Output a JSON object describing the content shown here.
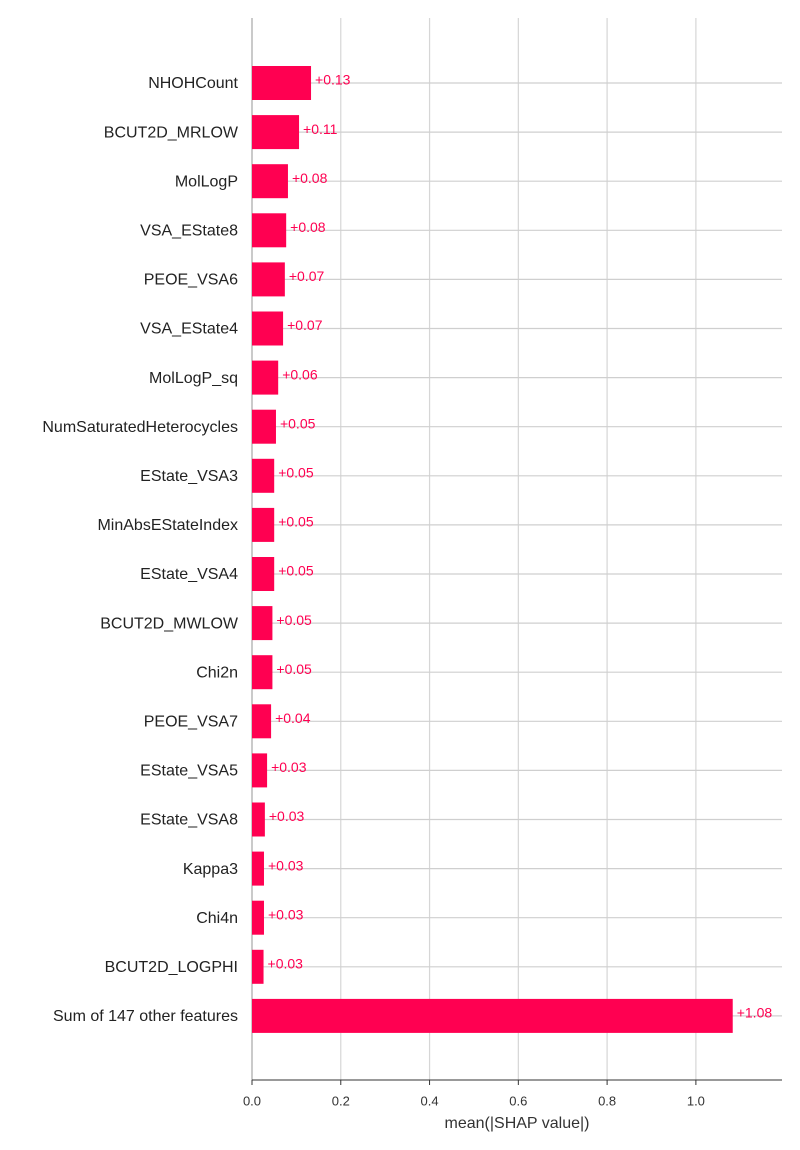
{
  "chart_data": {
    "type": "barh",
    "xlabel": "mean(|SHAP value|)",
    "categories": [
      "NHOHCount",
      "BCUT2D_MRLOW",
      "MolLogP",
      "VSA_EState8",
      "PEOE_VSA6",
      "VSA_EState4",
      "MolLogP_sq",
      "NumSaturatedHeterocycles",
      "EState_VSA3",
      "MinAbsEStateIndex",
      "EState_VSA4",
      "BCUT2D_MWLOW",
      "Chi2n",
      "PEOE_VSA7",
      "EState_VSA5",
      "EState_VSA8",
      "Kappa3",
      "Chi4n",
      "BCUT2D_LOGPHI",
      "Sum of 147 other features"
    ],
    "values": [
      0.133,
      0.106,
      0.081,
      0.077,
      0.074,
      0.07,
      0.059,
      0.054,
      0.05,
      0.05,
      0.05,
      0.046,
      0.046,
      0.043,
      0.034,
      0.029,
      0.027,
      0.027,
      0.026,
      1.083
    ],
    "value_labels": [
      "+0.13",
      "+0.11",
      "+0.08",
      "+0.08",
      "+0.07",
      "+0.07",
      "+0.06",
      "+0.05",
      "+0.05",
      "+0.05",
      "+0.05",
      "+0.05",
      "+0.05",
      "+0.04",
      "+0.03",
      "+0.03",
      "+0.03",
      "+0.03",
      "+0.03",
      "+1.08"
    ],
    "color": "#ff0051",
    "xlim": [
      0,
      1.194
    ],
    "xticks": [
      {
        "value": 0,
        "label": "0.0"
      },
      0.2,
      0.4,
      0.6,
      0.8,
      {
        "value": 1,
        "label": "1.0"
      }
    ],
    "grid": true
  }
}
